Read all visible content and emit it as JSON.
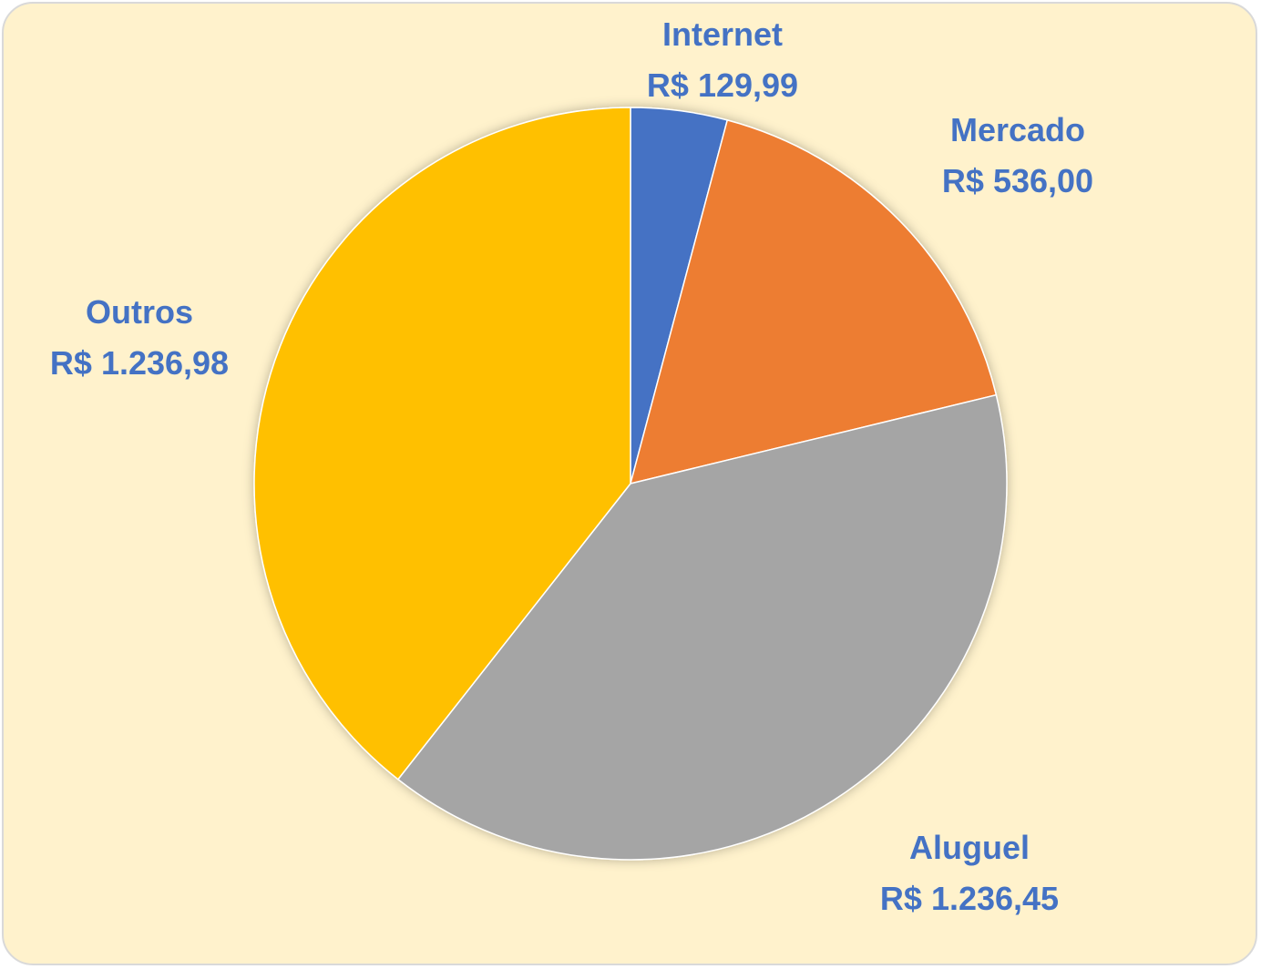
{
  "chart_data": {
    "type": "pie",
    "title": "",
    "background": "#fff2cc",
    "label_color": "#4472c4",
    "slices": [
      {
        "name": "Internet",
        "label": "R$ 129,99",
        "value": 129.99,
        "color": "#4472c4"
      },
      {
        "name": "Mercado",
        "label": "R$ 536,00",
        "value": 536.0,
        "color": "#ed7d31"
      },
      {
        "name": "Aluguel",
        "label": "R$ 1.236,45",
        "value": 1236.45,
        "color": "#a5a5a5"
      },
      {
        "name": "Outros",
        "label": "R$ 1.236,98",
        "value": 1236.98,
        "color": "#ffc000"
      }
    ]
  }
}
